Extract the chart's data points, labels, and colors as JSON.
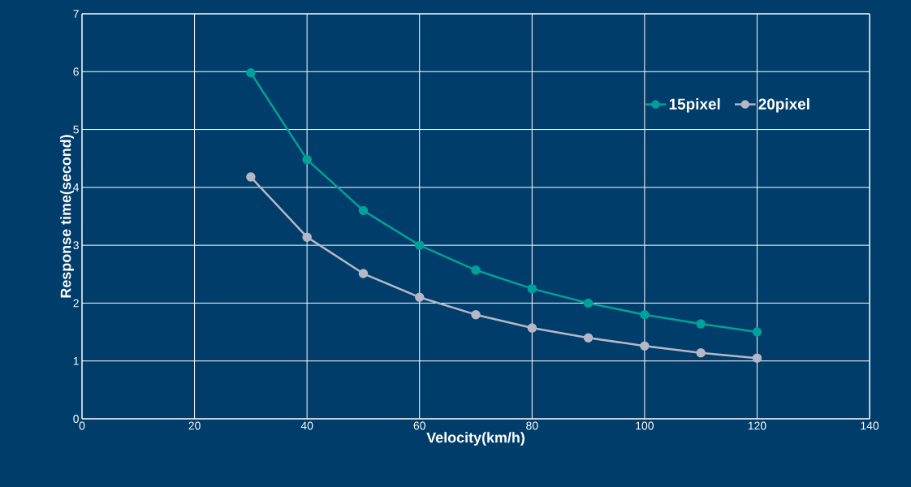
{
  "chart_data": {
    "type": "line",
    "xlabel": "Velocity(km/h)",
    "ylabel": "Response time(second)",
    "x": [
      30,
      40,
      50,
      60,
      70,
      80,
      90,
      100,
      110,
      120
    ],
    "series": [
      {
        "name": "15pixel",
        "color": "#00a19a",
        "values": [
          5.98,
          4.48,
          3.6,
          3.0,
          2.57,
          2.25,
          2.0,
          1.8,
          1.64,
          1.5
        ]
      },
      {
        "name": "20pixel",
        "color": "#b6b7c6",
        "values": [
          4.18,
          3.14,
          2.51,
          2.1,
          1.8,
          1.57,
          1.4,
          1.26,
          1.14,
          1.05
        ]
      }
    ],
    "xlim": [
      0,
      140
    ],
    "ylim": [
      0,
      7
    ],
    "xticks": [
      0,
      20,
      40,
      60,
      80,
      100,
      120,
      140
    ],
    "yticks": [
      0,
      1,
      2,
      3,
      4,
      5,
      6,
      7
    ],
    "grid": true,
    "legend": "top right",
    "marker": "circle",
    "line_style": "solid"
  }
}
